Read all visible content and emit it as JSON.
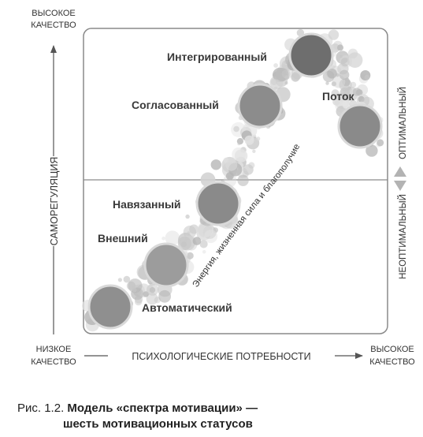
{
  "y_axis": {
    "top_label": [
      "ВЫСОКОЕ",
      "КАЧЕСТВО"
    ],
    "title": "САМОРЕГУЛЯЦИЯ",
    "bottom_label": [
      "НИЗКОЕ",
      "КАЧЕСТВО"
    ]
  },
  "x_axis": {
    "title": "ПСИХОЛОГИЧЕСКИЕ ПОТРЕБНОСТИ",
    "right_label": [
      "ВЫСОКОЕ",
      "КАЧЕСТВО"
    ]
  },
  "right_axis": {
    "top_label": "ОПТИМАЛЬНЫЙ",
    "bottom_label": "НЕОПТИМАЛЬНЫЙ"
  },
  "curve_label": "Энергия, жизненная сила и благополучие",
  "statuses": [
    {
      "id": "automatic",
      "label": "Автоматический",
      "shade": "#8f8f8f"
    },
    {
      "id": "external",
      "label": "Внешний",
      "shade": "#9c9c9c"
    },
    {
      "id": "imposed",
      "label": "Навязанный",
      "shade": "#8a8a8a"
    },
    {
      "id": "aligned",
      "label": "Согласованный",
      "shade": "#8c8c8c"
    },
    {
      "id": "integrated",
      "label": "Интегрированный",
      "shade": "#6e6e6e"
    },
    {
      "id": "flow",
      "label": "Поток",
      "shade": "#8a8a8a"
    }
  ],
  "caption": {
    "prefix": "Рис. 1.2.",
    "title_line1": "Модель «спектра мотивации» —",
    "title_line2": "шесть мотивационных статусов"
  }
}
